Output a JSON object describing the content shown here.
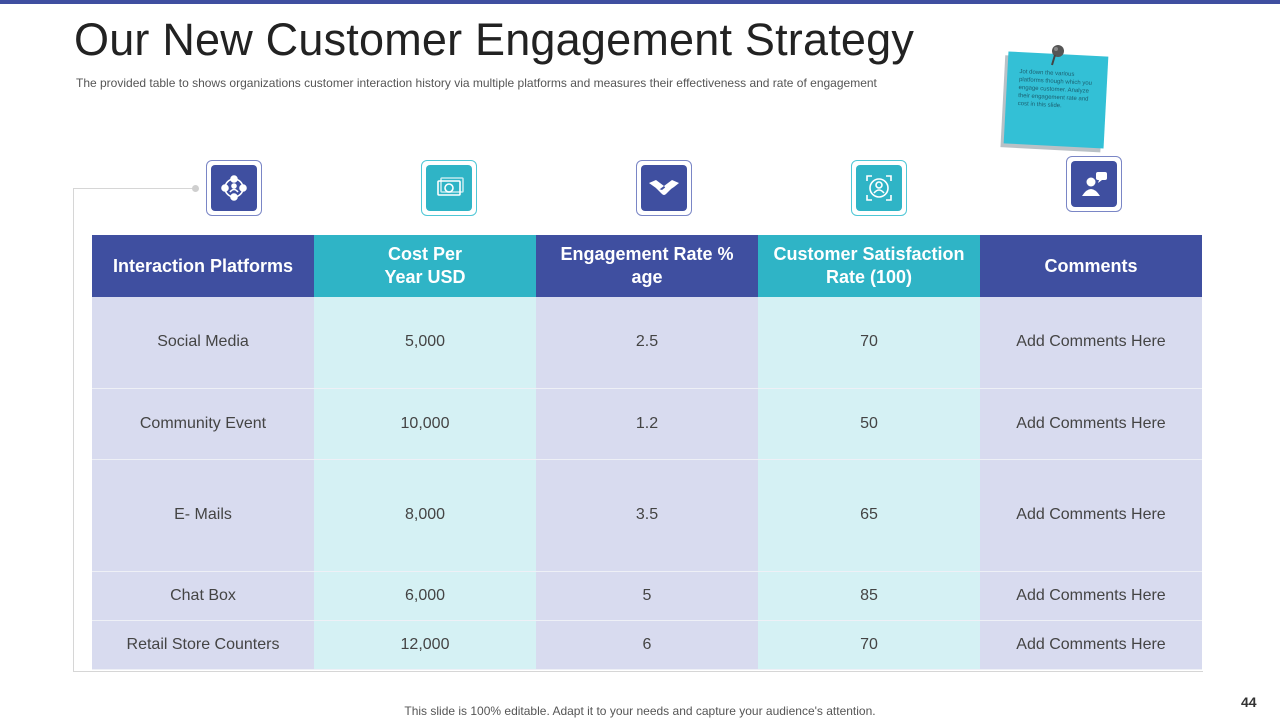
{
  "slide": {
    "title": "Our New Customer Engagement Strategy",
    "subtitle": "The provided  table to shows organizations  customer interaction history via  multiple platforms  and measures  their effectiveness  and rate of engagement",
    "note": "Jot down the various platforms though which you engage customer. Analyze their engagement rate and cost in this slide.",
    "footer": "This slide is 100% editable. Adapt it to your needs and capture your audience's attention.",
    "page_number": "44"
  },
  "colors": {
    "blue": "#3f4fa0",
    "teal": "#2fb4c6",
    "light_blue": "#d8dbef",
    "light_teal": "#d5f1f4"
  },
  "icons": [
    "network-people-icon",
    "money-bill-icon",
    "handshake-icon",
    "user-target-icon",
    "user-chat-icon"
  ],
  "table": {
    "headers": [
      "Interaction Platforms",
      "Cost Per\nYear USD",
      "Engagement Rate %\nage",
      "Customer Satisfaction\nRate (100)",
      "Comments"
    ],
    "rows": [
      [
        "Social Media",
        "5,000",
        "2.5",
        "70",
        "Add Comments Here"
      ],
      [
        "Community Event",
        "10,000",
        "1.2",
        "50",
        "Add Comments Here"
      ],
      [
        "E- Mails",
        "8,000",
        "3.5",
        "65",
        "Add Comments Here"
      ],
      [
        "Chat Box",
        "6,000",
        "5",
        "85",
        "Add Comments Here"
      ],
      [
        "Retail Store Counters",
        "12,000",
        "6",
        "70",
        "Add Comments Here"
      ]
    ]
  }
}
